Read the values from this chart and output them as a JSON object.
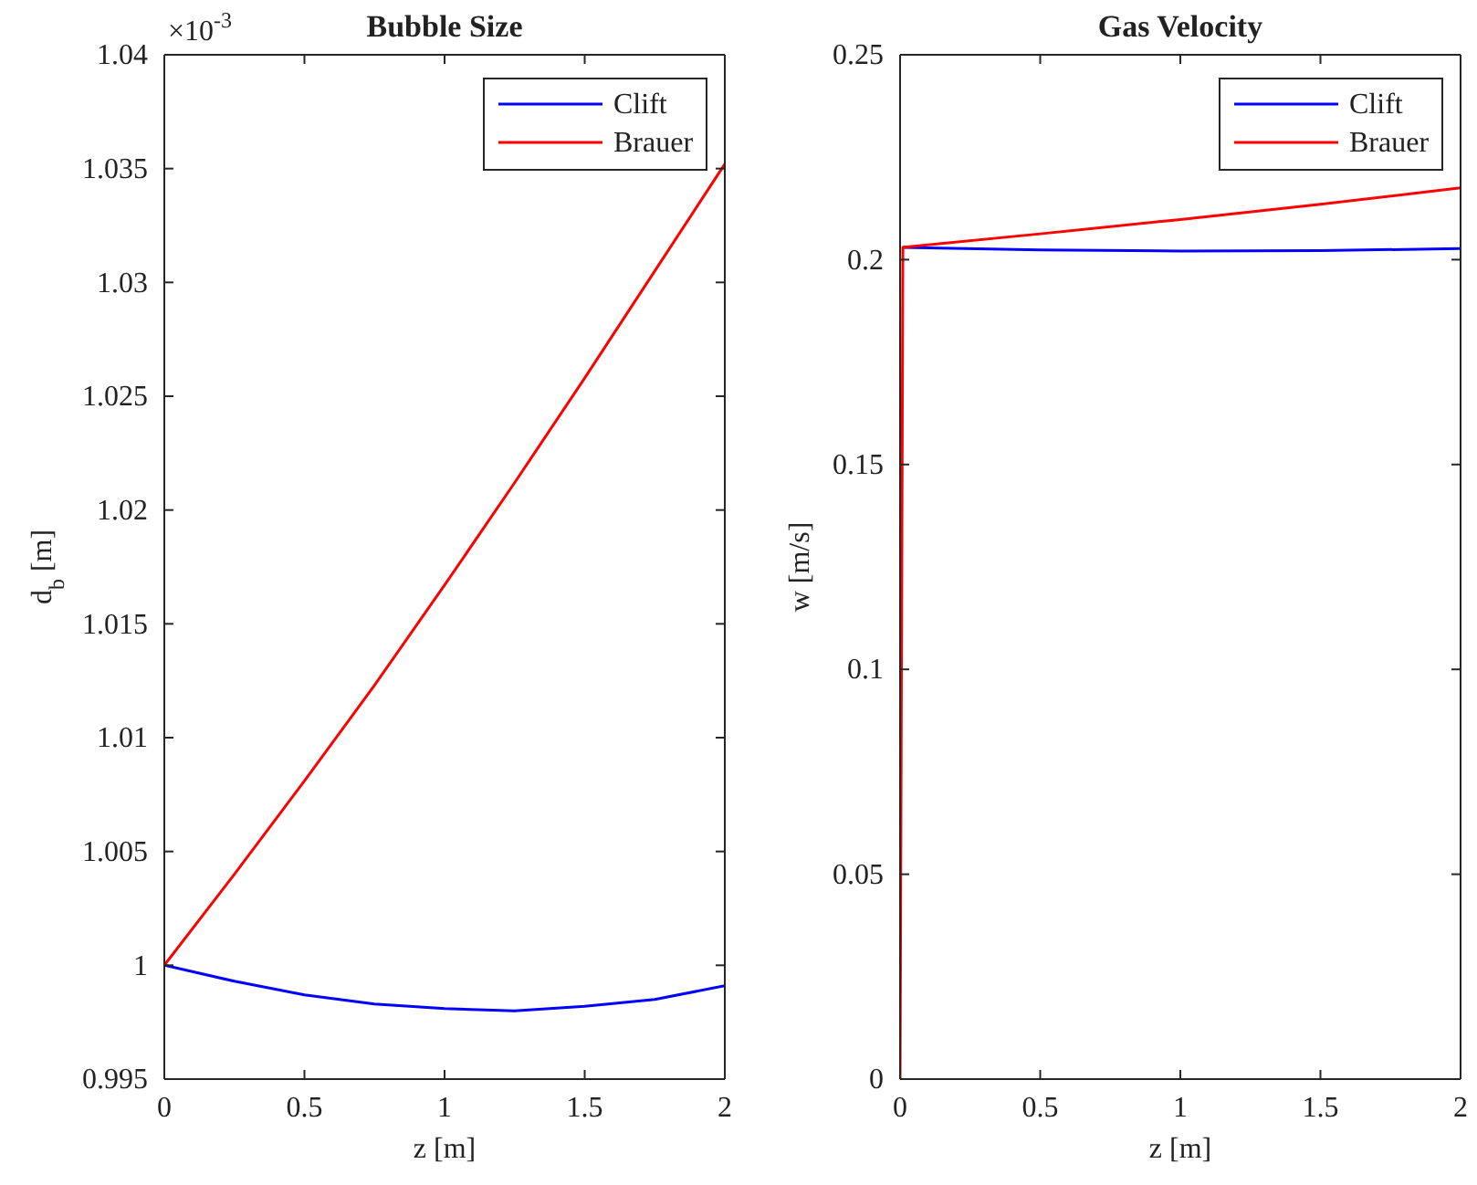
{
  "chart_data": [
    {
      "type": "line",
      "title": "Bubble Size",
      "xlabel": "z [m]",
      "ylabel": "d$_{b}$ [m]",
      "annotations": [
        "×10$^{-3}$"
      ],
      "xlim": [
        0,
        2
      ],
      "xticks": [
        0,
        0.5,
        1,
        1.5,
        2
      ],
      "ylim": [
        0.995,
        1.04
      ],
      "yticks": [
        0.995,
        1,
        1.005,
        1.01,
        1.015,
        1.02,
        1.025,
        1.03,
        1.035,
        1.04
      ],
      "grid": false,
      "legend": "top right",
      "x": [
        0,
        0.25,
        0.5,
        0.75,
        1,
        1.25,
        1.5,
        1.75,
        2
      ],
      "series": [
        {
          "name": "Clift",
          "color": "#0000ff",
          "values": [
            1.0,
            0.9993,
            0.9987,
            0.9983,
            0.9981,
            0.998,
            0.9982,
            0.9985,
            0.9991
          ]
        },
        {
          "name": "Brauer",
          "color": "#ff0000",
          "values": [
            1.0,
            1.004,
            1.0081,
            1.0123,
            1.0167,
            1.0212,
            1.0258,
            1.0305,
            1.0352
          ]
        }
      ]
    },
    {
      "type": "line",
      "title": "Gas Velocity",
      "xlabel": "z [m]",
      "ylabel": "w [m/s]",
      "xlim": [
        0,
        2
      ],
      "xticks": [
        0,
        0.5,
        1,
        1.5,
        2
      ],
      "ylim": [
        0,
        0.25
      ],
      "yticks": [
        0,
        0.05,
        0.1,
        0.15,
        0.2,
        0.25
      ],
      "grid": false,
      "legend": "top right",
      "x": [
        0,
        0.01,
        0.5,
        1,
        1.5,
        2
      ],
      "series": [
        {
          "name": "Clift",
          "color": "#0000ff",
          "values": [
            null,
            0.203,
            0.2024,
            0.2021,
            0.2022,
            0.2027
          ]
        },
        {
          "name": "Brauer",
          "color": "#ff0000",
          "values": [
            0,
            0.203,
            0.2063,
            0.2098,
            0.2135,
            0.2175
          ]
        }
      ]
    }
  ]
}
